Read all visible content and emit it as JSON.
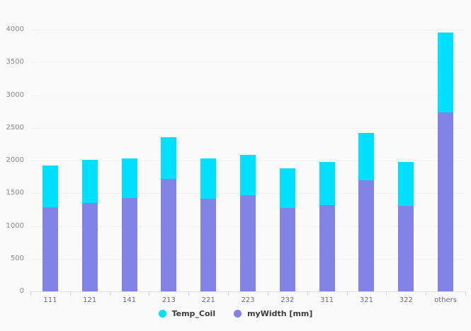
{
  "chart_data": {
    "type": "bar",
    "stacked": true,
    "title": "",
    "xlabel": "",
    "ylabel": "",
    "categories": [
      "111",
      "121",
      "141",
      "213",
      "221",
      "223",
      "232",
      "311",
      "321",
      "322",
      "others"
    ],
    "series": [
      {
        "name": "myWidth [mm]",
        "color": "#8184e5",
        "stack_position": "bottom",
        "values": [
          1290,
          1350,
          1430,
          1720,
          1420,
          1470,
          1280,
          1320,
          1700,
          1310,
          2740
        ]
      },
      {
        "name": "Temp_Coil",
        "color": "#00dffb",
        "stack_position": "top",
        "values": [
          630,
          660,
          600,
          640,
          610,
          620,
          600,
          660,
          720,
          670,
          1220
        ]
      }
    ],
    "stack_totals": [
      1920,
      2010,
      2030,
      2360,
      2030,
      2090,
      1880,
      1980,
      2420,
      1980,
      3960
    ],
    "ylim": [
      0,
      4000
    ],
    "ytick_step": 500,
    "ytick_labels": [
      "0",
      "500",
      "1000",
      "1500",
      "2000",
      "2500",
      "3000",
      "3500",
      "4000"
    ],
    "grid": true,
    "legend_position": "bottom-center"
  },
  "legend": {
    "items": [
      {
        "label": "Temp_Coil",
        "color": "#00dffb"
      },
      {
        "label": "myWidth [mm]",
        "color": "#8184e5"
      }
    ]
  },
  "colors": {
    "background": "#fafafa",
    "gridline": "#f0f0f0",
    "axis_line": "#e2e2e2",
    "y_label_text": "#8a8a8a",
    "x_label_text": "#6f6f6f",
    "legend_text": "#3b3b3b"
  }
}
